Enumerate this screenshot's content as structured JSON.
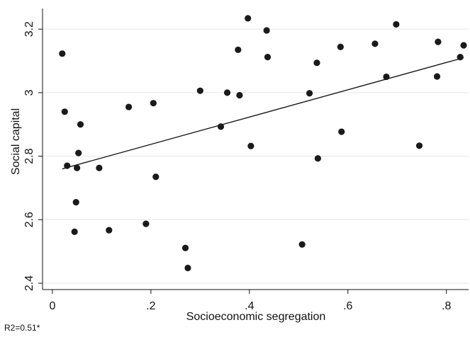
{
  "chart_data": {
    "type": "scatter",
    "xlabel": "Socioeconomic segregation",
    "ylabel": "Social capital",
    "xlim": [
      -0.02,
      0.845
    ],
    "ylim": [
      2.38,
      3.265
    ],
    "x_ticks": [
      0,
      0.2,
      0.4,
      0.6,
      0.8
    ],
    "x_tick_labels": [
      "0",
      ".2",
      ".4",
      ".6",
      ".8"
    ],
    "y_ticks": [
      2.4,
      2.6,
      2.8,
      3.0,
      3.2
    ],
    "y_tick_labels": [
      "2.4",
      "2.6",
      "2.8",
      "3",
      "3.2"
    ],
    "grid": "horizontal",
    "points": [
      {
        "x": 0.02,
        "y": 3.123
      },
      {
        "x": 0.025,
        "y": 2.94
      },
      {
        "x": 0.03,
        "y": 2.77
      },
      {
        "x": 0.045,
        "y": 2.562
      },
      {
        "x": 0.048,
        "y": 2.655
      },
      {
        "x": 0.05,
        "y": 2.763
      },
      {
        "x": 0.053,
        "y": 2.81
      },
      {
        "x": 0.057,
        "y": 2.9
      },
      {
        "x": 0.095,
        "y": 2.763
      },
      {
        "x": 0.115,
        "y": 2.567
      },
      {
        "x": 0.155,
        "y": 2.955
      },
      {
        "x": 0.19,
        "y": 2.587
      },
      {
        "x": 0.205,
        "y": 2.967
      },
      {
        "x": 0.21,
        "y": 2.735
      },
      {
        "x": 0.27,
        "y": 2.511
      },
      {
        "x": 0.275,
        "y": 2.448
      },
      {
        "x": 0.3,
        "y": 3.006
      },
      {
        "x": 0.342,
        "y": 2.893
      },
      {
        "x": 0.355,
        "y": 3.0
      },
      {
        "x": 0.377,
        "y": 3.135
      },
      {
        "x": 0.38,
        "y": 2.992
      },
      {
        "x": 0.397,
        "y": 3.234
      },
      {
        "x": 0.403,
        "y": 2.832
      },
      {
        "x": 0.435,
        "y": 3.196
      },
      {
        "x": 0.437,
        "y": 3.112
      },
      {
        "x": 0.507,
        "y": 2.522
      },
      {
        "x": 0.522,
        "y": 2.998
      },
      {
        "x": 0.537,
        "y": 3.094
      },
      {
        "x": 0.539,
        "y": 2.793
      },
      {
        "x": 0.585,
        "y": 3.144
      },
      {
        "x": 0.587,
        "y": 2.877
      },
      {
        "x": 0.655,
        "y": 3.154
      },
      {
        "x": 0.678,
        "y": 3.05
      },
      {
        "x": 0.698,
        "y": 3.215
      },
      {
        "x": 0.745,
        "y": 2.833
      },
      {
        "x": 0.781,
        "y": 3.051
      },
      {
        "x": 0.783,
        "y": 3.16
      },
      {
        "x": 0.828,
        "y": 3.112
      },
      {
        "x": 0.835,
        "y": 3.149
      }
    ],
    "fit_line": {
      "x": [
        0.02,
        0.835
      ],
      "y": [
        2.76,
        3.11
      ]
    },
    "note": "R2=0.51*"
  }
}
